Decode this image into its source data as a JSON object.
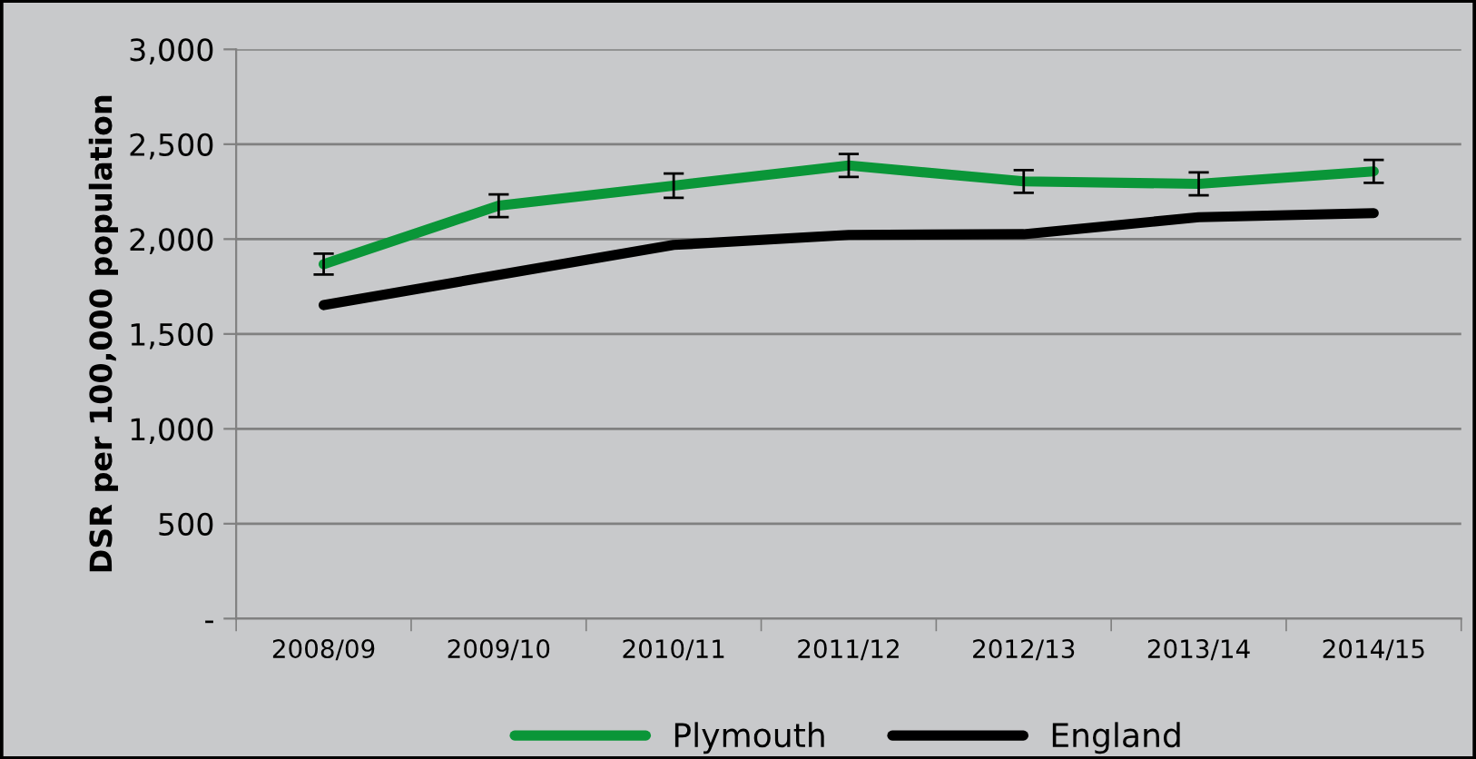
{
  "chart_data": {
    "type": "line",
    "ylabel": "DSR per 100,000 population",
    "categories": [
      "2008/09",
      "2009/10",
      "2010/11",
      "2011/12",
      "2012/13",
      "2013/14",
      "2014/15"
    ],
    "series": [
      {
        "name": "Plymouth",
        "color": "#0a9638",
        "values": [
          1868,
          2176,
          2282,
          2388,
          2304,
          2291,
          2357
        ],
        "errors": [
          55,
          60,
          64,
          60,
          60,
          60,
          60
        ]
      },
      {
        "name": "England",
        "color": "#000000",
        "values": [
          1652,
          1811,
          1969,
          2022,
          2026,
          2115,
          2137
        ]
      }
    ],
    "ylim": [
      0,
      3000
    ],
    "yticks": [
      {
        "value": 0,
        "label": "-"
      },
      {
        "value": 500,
        "label": "500"
      },
      {
        "value": 1000,
        "label": "1,000"
      },
      {
        "value": 1500,
        "label": "1,500"
      },
      {
        "value": 2000,
        "label": "2,000"
      },
      {
        "value": 2500,
        "label": "2,500"
      },
      {
        "value": 3000,
        "label": "3,000"
      }
    ],
    "grid": "y",
    "legend": "bottom",
    "marker": "none",
    "line_style": "solid"
  }
}
